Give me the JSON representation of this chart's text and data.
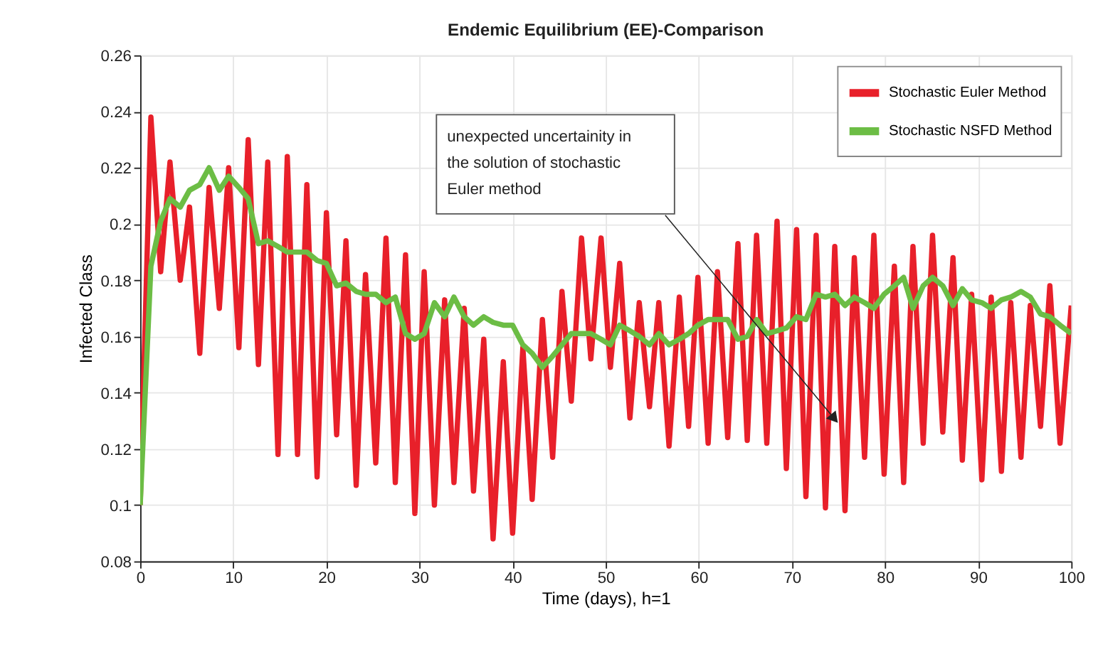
{
  "chart_data": {
    "type": "line",
    "title": "Endemic Equilibrium (EE)-Comparison",
    "xlabel": "Time (days), h=1",
    "ylabel": "Infected Class",
    "x": [
      0,
      1.15,
      2.2,
      3.2,
      4.3,
      5.3,
      6.4,
      7.4,
      8.5,
      9.5,
      10.6,
      11.6,
      12.7,
      13.7,
      14.8,
      15.8,
      16.9,
      17.9,
      19.0,
      20.0,
      21.1,
      22.1,
      23.2,
      24.2,
      25.3,
      26.4,
      27.4,
      28.5,
      29.5,
      30.5,
      31.6,
      32.7,
      33.7,
      34.8,
      35.8,
      36.9,
      37.9,
      39.0,
      40.0,
      41.1,
      42.1,
      43.2,
      44.3,
      45.3,
      46.3,
      47.4,
      48.4,
      49.5,
      50.5,
      51.5,
      52.6,
      53.6,
      54.7,
      55.7,
      56.8,
      57.9,
      58.9,
      59.9,
      61.0,
      62.0,
      63.1,
      64.2,
      65.2,
      66.2,
      67.3,
      68.4,
      69.4,
      70.5,
      71.5,
      72.6,
      73.6,
      74.6,
      75.7,
      76.7,
      77.8,
      78.8,
      79.9,
      81.0,
      82.0,
      83.0,
      84.1,
      85.1,
      86.2,
      87.3,
      88.3,
      89.3,
      90.4,
      91.4,
      92.5,
      93.5,
      94.6,
      95.6,
      96.7,
      97.7,
      98.8,
      100
    ],
    "series": [
      {
        "name": "Stochastic Euler Method",
        "color": "#e8202a",
        "values": [
          0.1,
          0.238,
          0.183,
          0.222,
          0.18,
          0.206,
          0.154,
          0.213,
          0.17,
          0.22,
          0.156,
          0.23,
          0.15,
          0.222,
          0.118,
          0.224,
          0.118,
          0.214,
          0.11,
          0.204,
          0.125,
          0.194,
          0.107,
          0.182,
          0.115,
          0.195,
          0.108,
          0.189,
          0.097,
          0.183,
          0.1,
          0.173,
          0.108,
          0.17,
          0.105,
          0.159,
          0.088,
          0.151,
          0.09,
          0.156,
          0.102,
          0.166,
          0.117,
          0.176,
          0.137,
          0.195,
          0.152,
          0.195,
          0.149,
          0.186,
          0.131,
          0.172,
          0.135,
          0.172,
          0.121,
          0.174,
          0.128,
          0.181,
          0.122,
          0.183,
          0.124,
          0.193,
          0.123,
          0.196,
          0.122,
          0.201,
          0.113,
          0.198,
          0.103,
          0.196,
          0.099,
          0.192,
          0.098,
          0.188,
          0.117,
          0.196,
          0.111,
          0.185,
          0.108,
          0.192,
          0.122,
          0.196,
          0.126,
          0.188,
          0.116,
          0.175,
          0.109,
          0.174,
          0.112,
          0.172,
          0.117,
          0.171,
          0.128,
          0.178,
          0.122,
          0.171
        ]
      },
      {
        "name": "Stochastic NSFD Method",
        "color": "#6cbd45",
        "values": [
          0.1,
          0.185,
          0.201,
          0.209,
          0.206,
          0.212,
          0.214,
          0.22,
          0.212,
          0.217,
          0.213,
          0.209,
          0.193,
          0.194,
          0.192,
          0.19,
          0.19,
          0.19,
          0.187,
          0.186,
          0.178,
          0.179,
          0.176,
          0.175,
          0.175,
          0.172,
          0.174,
          0.161,
          0.159,
          0.161,
          0.172,
          0.167,
          0.174,
          0.167,
          0.164,
          0.167,
          0.165,
          0.164,
          0.164,
          0.157,
          0.154,
          0.149,
          0.153,
          0.157,
          0.161,
          0.161,
          0.161,
          0.159,
          0.157,
          0.164,
          0.162,
          0.16,
          0.157,
          0.161,
          0.157,
          0.159,
          0.161,
          0.164,
          0.166,
          0.166,
          0.166,
          0.159,
          0.16,
          0.166,
          0.161,
          0.162,
          0.163,
          0.167,
          0.166,
          0.175,
          0.174,
          0.175,
          0.171,
          0.174,
          0.172,
          0.17,
          0.175,
          0.178,
          0.181,
          0.17,
          0.178,
          0.181,
          0.178,
          0.171,
          0.177,
          0.173,
          0.172,
          0.17,
          0.173,
          0.174,
          0.176,
          0.174,
          0.168,
          0.167,
          0.164,
          0.161
        ]
      }
    ],
    "xlim": [
      0,
      100
    ],
    "xticks": [
      0,
      10,
      20,
      30,
      40,
      50,
      60,
      70,
      80,
      90,
      100
    ],
    "ylim": [
      0.08,
      0.26
    ],
    "yticks": [
      0.08,
      0.1,
      0.12,
      0.14,
      0.16,
      0.18,
      0.2,
      0.22,
      0.24,
      0.26
    ],
    "annotations": [
      "unexpected uncertainity in the solution of stochastic Euler method"
    ],
    "grid": true,
    "legend": "top right",
    "marker": "none",
    "line_style": "solid"
  }
}
